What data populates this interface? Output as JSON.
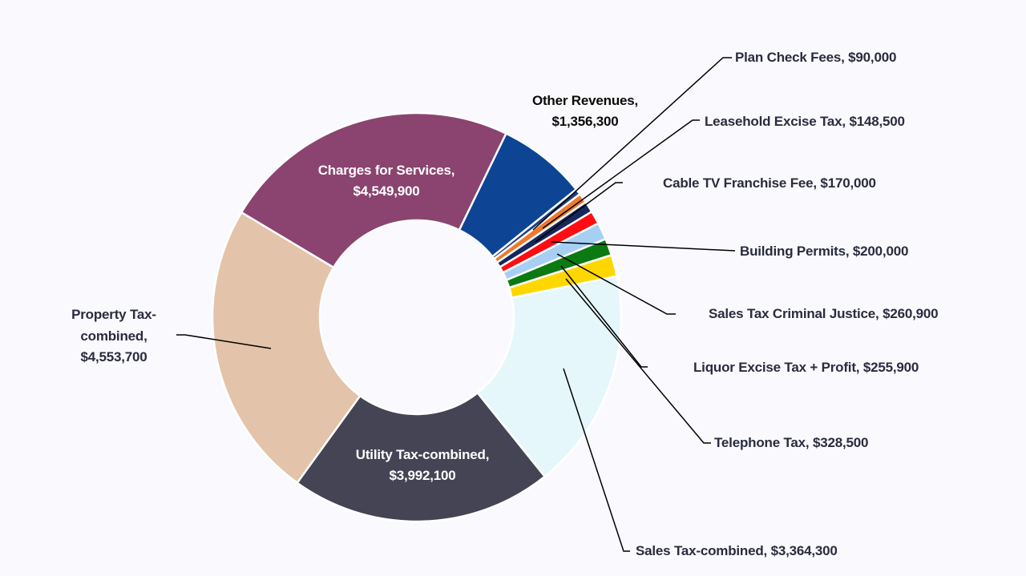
{
  "chart_data": {
    "type": "pie",
    "subtype": "donut",
    "title": "",
    "start_angle_deg": 25.9,
    "total": 19270100,
    "legend": "none (data labels with leader lines)",
    "categories": [
      "Other Revenues",
      "Plan Check Fees",
      "Leasehold Excise Tax",
      "Cable TV Franchise Fee",
      "Building Permits",
      "Sales Tax Criminal Justice",
      "Liquor Excise Tax + Profit",
      "Telephone Tax",
      "Sales Tax-combined",
      "Utility Tax-combined",
      "Property Tax-combined",
      "Charges for Services"
    ],
    "values": [
      1356300,
      90000,
      148500,
      170000,
      200000,
      260900,
      255900,
      328500,
      3364300,
      3992100,
      4553700,
      4549900
    ],
    "colors": [
      "#0D4594",
      "#1E3D85",
      "#EC7A2C",
      "#15285E",
      "#FF0D12",
      "#A7CFF3",
      "#0B7A12",
      "#FFD700",
      "#E6F7FB",
      "#454455",
      "#E3C4AA",
      "#8A446F"
    ],
    "labels": {
      "other_revenues": [
        "Other Revenues,",
        "$1,356,300"
      ],
      "plan_check": "Plan Check Fees, $90,000",
      "leasehold": "Leasehold Excise Tax, $148,500",
      "cable_tv": "Cable TV Franchise Fee, $170,000",
      "building_permits": "Building Permits, $200,000",
      "sales_tax_cj": "Sales Tax Criminal Justice, $260,900",
      "liquor": "Liquor Excise Tax + Profit, $255,900",
      "telephone": "Telephone Tax, $328,500",
      "sales_tax": "Sales Tax-combined, $3,364,300",
      "utility_tax": [
        "Utility Tax-combined,",
        "$3,992,100"
      ],
      "property_tax": [
        "Property Tax-",
        "combined,",
        "$4,553,700"
      ],
      "charges": [
        "Charges for Services,",
        "$4,549,900"
      ]
    }
  }
}
